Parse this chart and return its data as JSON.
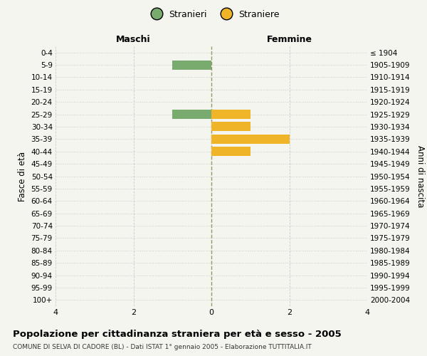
{
  "age_groups": [
    "0-4",
    "5-9",
    "10-14",
    "15-19",
    "20-24",
    "25-29",
    "30-34",
    "35-39",
    "40-44",
    "45-49",
    "50-54",
    "55-59",
    "60-64",
    "65-69",
    "70-74",
    "75-79",
    "80-84",
    "85-89",
    "90-94",
    "95-99",
    "100+"
  ],
  "birth_years": [
    "2000-2004",
    "1995-1999",
    "1990-1994",
    "1985-1989",
    "1980-1984",
    "1975-1979",
    "1970-1974",
    "1965-1969",
    "1960-1964",
    "1955-1959",
    "1950-1954",
    "1945-1949",
    "1940-1944",
    "1935-1939",
    "1930-1934",
    "1925-1929",
    "1920-1924",
    "1915-1919",
    "1910-1914",
    "1905-1909",
    "≤ 1904"
  ],
  "males": [
    0,
    -1,
    0,
    0,
    0,
    -1,
    0,
    0,
    0,
    0,
    0,
    0,
    0,
    0,
    0,
    0,
    0,
    0,
    0,
    0,
    0
  ],
  "females": [
    0,
    0,
    0,
    0,
    0,
    1,
    1,
    2,
    1,
    0,
    0,
    0,
    0,
    0,
    0,
    0,
    0,
    0,
    0,
    0,
    0
  ],
  "male_color": "#7aab6e",
  "female_color": "#f0b429",
  "title": "Popolazione per cittadinanza straniera per età e sesso - 2005",
  "subtitle": "COMUNE DI SELVA DI CADORE (BL) - Dati ISTAT 1° gennaio 2005 - Elaborazione TUTTITALIA.IT",
  "xlabel_left": "Maschi",
  "xlabel_right": "Femmine",
  "ylabel_left": "Fasce di età",
  "ylabel_right": "Anni di nascita",
  "legend_male": "Stranieri",
  "legend_female": "Straniere",
  "xlim": [
    -4,
    4
  ],
  "xticks": [
    -4,
    -2,
    0,
    2,
    4
  ],
  "xticklabels": [
    "4",
    "2",
    "0",
    "2",
    "4"
  ],
  "bg_color": "#f5f5f0",
  "grid_color": "#cccccc",
  "center_line_color": "#999966",
  "bar_height": 0.75
}
